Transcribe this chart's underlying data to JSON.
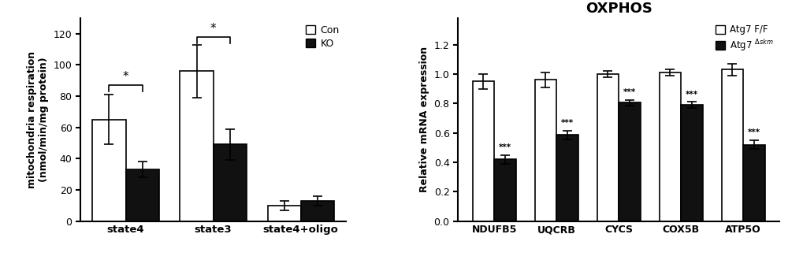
{
  "left": {
    "ylabel": "mitochondria respiration\n(nmol/min/mg protein)",
    "categories": [
      "state4",
      "state3",
      "state4+oligo"
    ],
    "con_values": [
      65,
      96,
      10
    ],
    "ko_values": [
      33,
      49,
      13
    ],
    "con_errors": [
      16,
      17,
      3
    ],
    "ko_errors": [
      5,
      10,
      3
    ],
    "ylim": [
      0,
      130
    ],
    "yticks": [
      0,
      20,
      40,
      60,
      80,
      100,
      120
    ],
    "legend_labels": [
      "Con",
      "KO"
    ],
    "bar_width": 0.38,
    "significance": [
      {
        "group": 0,
        "y": 87,
        "text": "*"
      },
      {
        "group": 1,
        "y": 118,
        "text": "*"
      }
    ]
  },
  "right": {
    "title": "OXPHOS",
    "ylabel": "Relative mRNA expression",
    "categories": [
      "NDUFB5",
      "UQCRB",
      "CYCS",
      "COX5B",
      "ATP5O"
    ],
    "con_values": [
      0.95,
      0.96,
      1.0,
      1.01,
      1.03
    ],
    "ko_values": [
      0.42,
      0.585,
      0.805,
      0.79,
      0.52
    ],
    "con_errors": [
      0.05,
      0.05,
      0.02,
      0.02,
      0.04
    ],
    "ko_errors": [
      0.03,
      0.03,
      0.02,
      0.02,
      0.03
    ],
    "ylim": [
      0,
      1.38
    ],
    "yticks": [
      0.0,
      0.2,
      0.4,
      0.6,
      0.8,
      1.0,
      1.2
    ],
    "bar_width": 0.35,
    "significance": [
      {
        "group": 0,
        "text": "***"
      },
      {
        "group": 1,
        "text": "***"
      },
      {
        "group": 2,
        "text": "***"
      },
      {
        "group": 3,
        "text": "***"
      },
      {
        "group": 4,
        "text": "***"
      }
    ]
  },
  "colors": {
    "con": "#FFFFFF",
    "ko": "#111111",
    "edge": "#000000"
  }
}
